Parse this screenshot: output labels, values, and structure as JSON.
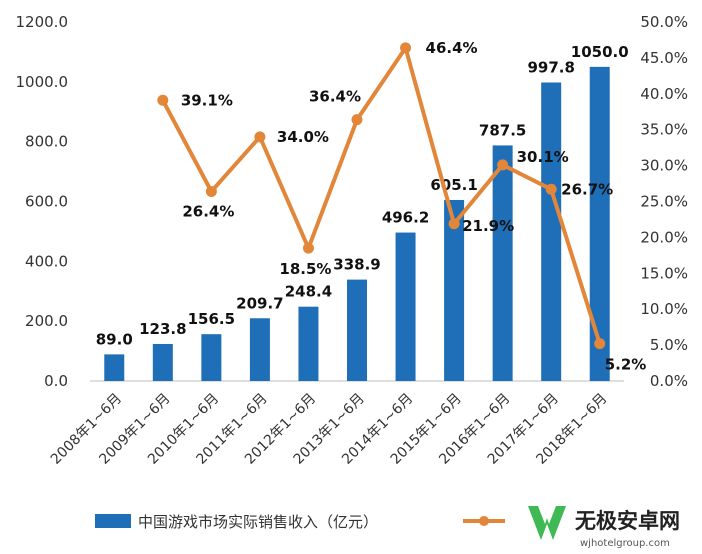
{
  "chart_data": {
    "type": "bar+line",
    "categories": [
      "2008年1~6月",
      "2009年1~6月",
      "2010年1~6月",
      "2011年1~6月",
      "2012年1~6月",
      "2013年1~6月",
      "2014年1~6月",
      "2015年1~6月",
      "2016年1~6月",
      "2017年1~6月",
      "2018年1~6月"
    ],
    "series": [
      {
        "name": "中国游戏市场实际销售收入（亿元）",
        "type": "bar",
        "axis": "left",
        "color": "#1f6fb8",
        "values": [
          89.0,
          123.8,
          156.5,
          209.7,
          248.4,
          338.9,
          496.2,
          605.1,
          787.5,
          997.8,
          1050.0
        ],
        "labels": [
          "89.0",
          "123.8",
          "156.5",
          "209.7",
          "248.4",
          "338.9",
          "496.2",
          "605.1",
          "787.5",
          "997.8",
          "1050.0"
        ]
      },
      {
        "name": "",
        "type": "line",
        "axis": "right",
        "color": "#e2863a",
        "values": [
          null,
          39.1,
          26.4,
          34.0,
          18.5,
          36.4,
          46.4,
          21.9,
          30.1,
          26.7,
          5.2
        ],
        "labels": [
          "",
          "39.1%",
          "26.4%",
          "34.0%",
          "18.5%",
          "36.4%",
          "46.4%",
          "21.9%",
          "30.1%",
          "26.7%",
          "5.2%"
        ]
      }
    ],
    "y_left": {
      "min": 0,
      "max": 1200,
      "ticks": [
        "0.0",
        "200.0",
        "400.0",
        "600.0",
        "800.0",
        "1000.0",
        "1200.0"
      ]
    },
    "y_right": {
      "min": 0,
      "max": 50,
      "ticks": [
        "0.0%",
        "5.0%",
        "10.0%",
        "15.0%",
        "20.0%",
        "25.0%",
        "30.0%",
        "35.0%",
        "40.0%",
        "45.0%",
        "50.0%"
      ]
    },
    "legend_position": "bottom",
    "grid": false
  },
  "watermark": {
    "name": "无极安卓网",
    "url": "wjhotelgroup.com",
    "color": "#35b54a"
  }
}
